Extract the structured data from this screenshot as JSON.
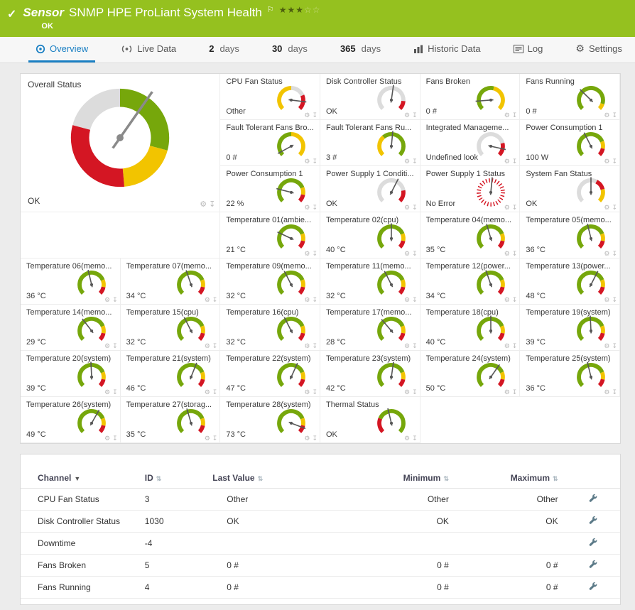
{
  "header": {
    "kind": "Sensor",
    "title": "SNMP HPE ProLiant System Health",
    "status": "OK",
    "rating_filled": "★★★",
    "rating_empty": "☆☆"
  },
  "tabs": [
    {
      "label": "Overview"
    },
    {
      "label": "Live Data"
    },
    {
      "num": "2",
      "word": "days"
    },
    {
      "num": "30",
      "word": "days"
    },
    {
      "num": "365",
      "word": "days"
    },
    {
      "label": "Historic Data"
    },
    {
      "label": "Log"
    },
    {
      "label": "Settings"
    }
  ],
  "colors": {
    "header_bg": "#95c11f",
    "accent_blue": "#1a7fc3",
    "gauge": {
      "green": "#76a70b",
      "yellow": "#f2c400",
      "red": "#d41623",
      "gray": "#dcdcdc"
    }
  },
  "gauges": {
    "presets": {
      "temp": [
        [
          "green",
          0,
          0.75
        ],
        [
          "yellow",
          0.75,
          0.875
        ],
        [
          "red",
          0.875,
          1
        ]
      ]
    },
    "overall": {
      "label": "Overall Status",
      "value": "OK",
      "needle_deg": 35,
      "segments": [
        [
          "green",
          0,
          105
        ],
        [
          "yellow",
          105,
          175
        ],
        [
          "red",
          175,
          285
        ],
        [
          "gray",
          285,
          360
        ]
      ]
    },
    "tiles": [
      {
        "label": "CPU Fan Status",
        "value": "Other",
        "seg": [
          [
            "yellow",
            0,
            0.5
          ],
          [
            "gray",
            0.5,
            0.75
          ],
          [
            "red",
            0.75,
            1
          ]
        ],
        "needle": 0.86
      },
      {
        "label": "Disk Controller Status",
        "value": "OK",
        "seg": [
          [
            "gray",
            0,
            0.85
          ],
          [
            "red",
            0.85,
            1
          ]
        ],
        "needle": 0.53
      },
      {
        "label": "Fans Broken",
        "value": "0 #",
        "seg": [
          [
            "green",
            0,
            0.55
          ],
          [
            "yellow",
            0.55,
            1
          ]
        ],
        "needle": 0.15
      },
      {
        "label": "Fans Running",
        "value": "0 #",
        "seg": [
          [
            "green",
            0,
            0.9
          ],
          [
            "yellow",
            0.9,
            1
          ]
        ],
        "needle": 0.33
      },
      {
        "label": "Fault Tolerant Fans Bro...",
        "value": "0 #",
        "seg": [
          [
            "green",
            0,
            0.5
          ],
          [
            "yellow",
            0.5,
            1
          ]
        ],
        "needle": 0.06
      },
      {
        "label": "Fault Tolerant Fans Ru...",
        "value": "3 #",
        "seg": [
          [
            "yellow",
            0,
            0.35
          ],
          [
            "green",
            0.35,
            1
          ]
        ],
        "needle": 0.52
      },
      {
        "label": "Integrated Manageme...",
        "value": "Undefined lookup v...",
        "seg": [
          [
            "gray",
            0,
            0.78
          ],
          [
            "red",
            0.78,
            1
          ]
        ],
        "needle": 0.88
      },
      {
        "label": "Power Consumption 1",
        "value": "100 W",
        "seg": "temp",
        "needle": 0.4
      },
      {
        "label": "Power Consumption 1",
        "value": "22 %",
        "seg": "temp",
        "needle": 0.22
      },
      {
        "label": "Power Supply 1 Conditi...",
        "value": "OK",
        "seg": [
          [
            "gray",
            0,
            0.8
          ],
          [
            "red",
            0.8,
            1
          ]
        ],
        "needle": 0.6
      },
      {
        "label": "Power Supply 1 Status",
        "value": "No Error",
        "type": "dashed",
        "needle": 0.52
      },
      {
        "label": "System Fan Status",
        "value": "OK",
        "seg": [
          [
            "gray",
            0,
            0.6
          ],
          [
            "red",
            0.6,
            0.78
          ],
          [
            "yellow",
            0.78,
            1
          ]
        ],
        "needle": 0.5
      },
      {
        "label": "Temperature 01(ambie...",
        "value": "21 °C",
        "seg": "temp",
        "needle": 0.26
      },
      {
        "label": "Temperature 02(cpu)",
        "value": "40 °C",
        "seg": "temp",
        "needle": 0.5
      },
      {
        "label": "Temperature 04(memo...",
        "value": "35 °C",
        "seg": "temp",
        "needle": 0.44
      },
      {
        "label": "Temperature 05(memo...",
        "value": "36 °C",
        "seg": "temp",
        "needle": 0.45
      },
      {
        "label": "Temperature 06(memo...",
        "value": "36 °C",
        "seg": "temp",
        "needle": 0.45
      },
      {
        "label": "Temperature 07(memo...",
        "value": "34 °C",
        "seg": "temp",
        "needle": 0.43
      },
      {
        "label": "Temperature 09(memo...",
        "value": "32 °C",
        "seg": "temp",
        "needle": 0.4
      },
      {
        "label": "Temperature 11(memo...",
        "value": "32 °C",
        "seg": "temp",
        "needle": 0.4
      },
      {
        "label": "Temperature 12(power...",
        "value": "34 °C",
        "seg": "temp",
        "needle": 0.43
      },
      {
        "label": "Temperature 13(power...",
        "value": "48 °C",
        "seg": "temp",
        "needle": 0.6
      },
      {
        "label": "Temperature 14(memo...",
        "value": "29 °C",
        "seg": "temp",
        "needle": 0.36
      },
      {
        "label": "Temperature 15(cpu)",
        "value": "32 °C",
        "seg": "temp",
        "needle": 0.4
      },
      {
        "label": "Temperature 16(cpu)",
        "value": "32 °C",
        "seg": "temp",
        "needle": 0.4
      },
      {
        "label": "Temperature 17(memo...",
        "value": "28 °C",
        "seg": "temp",
        "needle": 0.35
      },
      {
        "label": "Temperature 18(cpu)",
        "value": "40 °C",
        "seg": "temp",
        "needle": 0.5
      },
      {
        "label": "Temperature 19(system)",
        "value": "39 °C",
        "seg": "temp",
        "needle": 0.49
      },
      {
        "label": "Temperature 20(system)",
        "value": "39 °C",
        "seg": "temp",
        "needle": 0.49
      },
      {
        "label": "Temperature 21(system)",
        "value": "46 °C",
        "seg": "temp",
        "needle": 0.58
      },
      {
        "label": "Temperature 22(system)",
        "value": "47 °C",
        "seg": "temp",
        "needle": 0.59
      },
      {
        "label": "Temperature 23(system)",
        "value": "42 °C",
        "seg": "temp",
        "needle": 0.53
      },
      {
        "label": "Temperature 24(system)",
        "value": "50 °C",
        "seg": "temp",
        "needle": 0.63
      },
      {
        "label": "Temperature 25(system)",
        "value": "36 °C",
        "seg": "temp",
        "needle": 0.45
      },
      {
        "label": "Temperature 26(system)",
        "value": "49 °C",
        "seg": "temp",
        "needle": 0.61
      },
      {
        "label": "Temperature 27(storag...",
        "value": "35 °C",
        "seg": "temp",
        "needle": 0.44
      },
      {
        "label": "Temperature 28(system)",
        "value": "73 °C",
        "seg": "temp",
        "needle": 0.91
      },
      {
        "label": "Thermal Status",
        "value": "OK",
        "seg": [
          [
            "red",
            0,
            0.25
          ],
          [
            "green",
            0.25,
            1
          ]
        ],
        "needle": 0.45
      }
    ]
  },
  "table": {
    "columns": [
      "Channel",
      "ID",
      "Last Value",
      "Minimum",
      "Maximum"
    ],
    "rows": [
      {
        "channel": "CPU Fan Status",
        "id": "3",
        "last": "Other",
        "min": "Other",
        "max": "Other"
      },
      {
        "channel": "Disk Controller Status",
        "id": "1030",
        "last": "OK",
        "min": "OK",
        "max": "OK"
      },
      {
        "channel": "Downtime",
        "id": "-4",
        "last": "",
        "min": "",
        "max": ""
      },
      {
        "channel": "Fans Broken",
        "id": "5",
        "last": "0 #",
        "min": "0 #",
        "max": "0 #"
      },
      {
        "channel": "Fans Running",
        "id": "4",
        "last": "0 #",
        "min": "0 #",
        "max": "0 #"
      }
    ]
  }
}
